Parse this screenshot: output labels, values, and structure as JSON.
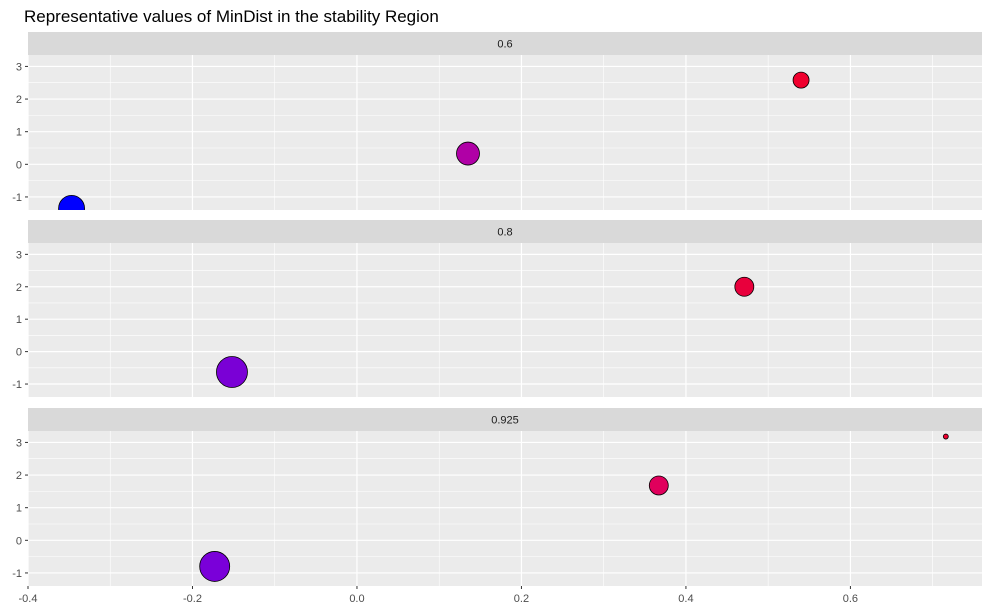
{
  "chart_data": {
    "type": "scatter",
    "title": "Representative values of MinDist in the stability Region",
    "xlabel": "",
    "ylabel": "",
    "xlim": [
      -0.4,
      0.76
    ],
    "ylim": [
      -1.4,
      3.35
    ],
    "x_ticks": [
      -0.4,
      -0.2,
      0.0,
      0.2,
      0.4,
      0.6
    ],
    "x_tick_labels": [
      "-0.4",
      "-0.2",
      "0.0",
      "0.2",
      "0.4",
      "0.6"
    ],
    "y_ticks": [
      -1,
      0,
      1,
      2,
      3
    ],
    "y_tick_labels": [
      "-1",
      "0",
      "1",
      "2",
      "3"
    ],
    "grid": true,
    "legend": "none",
    "panels": [
      {
        "label": "0.6",
        "points": [
          {
            "x": -0.347,
            "y": -1.35,
            "size": 13,
            "color": "#0000FF"
          },
          {
            "x": 0.135,
            "y": 0.33,
            "size": 11.5,
            "color": "#B000A6"
          },
          {
            "x": 0.54,
            "y": 2.58,
            "size": 8,
            "color": "#F0002E"
          }
        ]
      },
      {
        "label": "0.8",
        "points": [
          {
            "x": -0.152,
            "y": -0.63,
            "size": 15.5,
            "color": "#7A00D6"
          },
          {
            "x": 0.471,
            "y": 2.0,
            "size": 9.5,
            "color": "#E8003C"
          }
        ]
      },
      {
        "label": "0.925",
        "points": [
          {
            "x": -0.173,
            "y": -0.8,
            "size": 15,
            "color": "#7A00D9"
          },
          {
            "x": 0.367,
            "y": 1.68,
            "size": 9.5,
            "color": "#E0005C"
          },
          {
            "x": 0.716,
            "y": 3.18,
            "size": 2.5,
            "color": "#F00030"
          }
        ]
      }
    ],
    "colors": {
      "panel_background": "#EBEBEB",
      "strip_background": "#D9D9D9",
      "gridline": "#FFFFFF"
    }
  }
}
